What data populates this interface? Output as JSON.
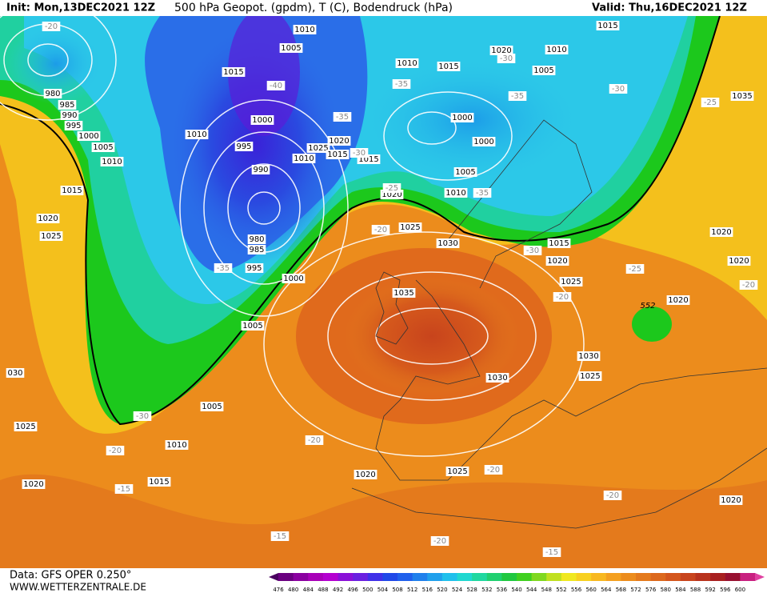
{
  "header": {
    "init": "Init: Mon,13DEC2021 12Z",
    "title": "500 hPa Geopot. (gpdm), T (C), Bodendruck (hPa)",
    "valid": "Valid: Thu,16DEC2021 12Z"
  },
  "footer": {
    "data": "Data: GFS OPER 0.250°",
    "site": "WWW.WETTERZENTRALE.DE"
  },
  "colorbar": {
    "ticks": [
      476,
      480,
      484,
      488,
      492,
      496,
      500,
      504,
      508,
      512,
      516,
      520,
      524,
      528,
      532,
      536,
      540,
      544,
      548,
      552,
      556,
      560,
      564,
      568,
      572,
      576,
      580,
      584,
      588,
      592,
      596,
      600
    ]
  },
  "map": {
    "pressure_labels": [
      "1010",
      "1005",
      "1015",
      "1000",
      "995",
      "990",
      "980",
      "985",
      "995",
      "1000",
      "1005",
      "1010",
      "1005",
      "1010",
      "1000",
      "995",
      "990",
      "985",
      "980",
      "1015",
      "1020",
      "1025",
      "1020",
      "1025",
      "1015",
      "1010",
      "1015",
      "1020",
      "1025",
      "1030",
      "1035",
      "1010",
      "1015",
      "1020",
      "1010",
      "1015",
      "1005",
      "1000",
      "1000",
      "1005",
      "1010",
      "1015",
      "1020",
      "1025",
      "1030",
      "1025",
      "1030",
      "1020",
      "1020",
      "1020",
      "1035",
      "030",
      "1025",
      "1020",
      "1005",
      "1010",
      "1015",
      "1020",
      "1025",
      "1020"
    ],
    "temperature_labels": [
      "-20",
      "-40",
      "-35",
      "-35",
      "-35",
      "-30",
      "-25",
      "-20",
      "-35",
      "-30",
      "-30",
      "-25",
      "-35",
      "-30",
      "-25",
      "-20",
      "-20",
      "-30",
      "-20",
      "-20",
      "-15",
      "-15",
      "-20",
      "-20",
      "-20",
      "-15"
    ],
    "height_labels": [
      "552"
    ]
  }
}
